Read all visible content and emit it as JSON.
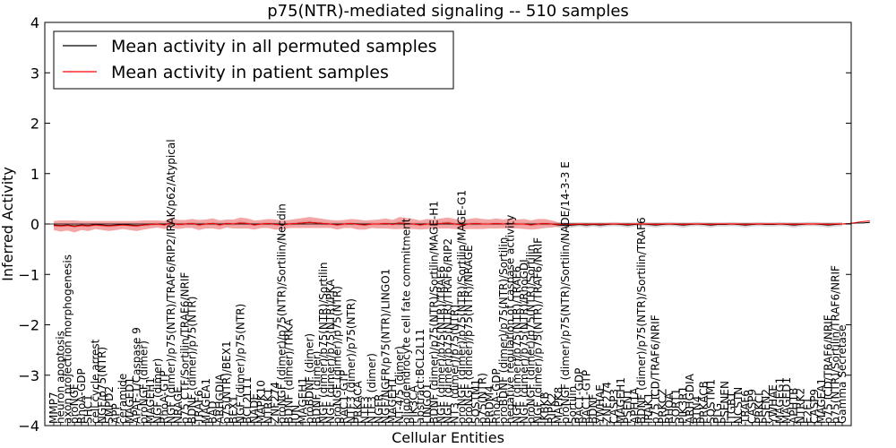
{
  "chart_data": {
    "type": "line",
    "title": "p75(NTR)-mediated signaling -- 510 samples",
    "xlabel": "Cellular Entities",
    "ylabel": "Inferred Activity",
    "ylim": [
      -4,
      4
    ],
    "yticks": [
      "-4",
      "-3",
      "-2",
      "-1",
      "0",
      "1",
      "2",
      "3",
      "4"
    ],
    "grid": false,
    "legend_position": "top-left",
    "colors": {
      "permuted": "#000000",
      "patient": "#ff0000",
      "patient_band": "#f08080",
      "permuted_band": "#c8c8c8"
    },
    "entities": [
      "MMP7",
      "neuron apoptosis",
      "axon projection morphogenesis",
      "proNGF",
      "RhoA-GDP",
      "SHC1",
      "cell cycle arrest",
      "NGF/p75(NTR)",
      "SMPD2",
      "APP",
      "ceramide",
      "MAGED1",
      "APAF-1/Caspase 9",
      "proNGF (dimer)",
      "MAGEH1",
      "NGF (dimer)",
      "RhoA-GTP",
      "NGF (dimer)/p75(NTR)/TRAF6/RIP2/IRAK/p62/Atypical",
      "NRAGE",
      "p75 CTF/Sortilin/TRAF6/NRIF",
      "BDNF (dimer)/p75(NTR)",
      "TRAF6",
      "MAGEA1",
      "BAD",
      "ARHGDIA",
      "p75(NTR)/BEX1",
      "BEX1",
      "NGF (dimer)/p75(NTR)",
      "BCL2L11",
      "NADE",
      "MAPK10",
      "NTRK1",
      "ZNF274",
      "proNGF (dimer)/p75(NTR)/Sortilin/Necdin",
      "BDNF (dimer)/TRKA",
      "JUN",
      "MAGEH1",
      "proBDNF (dimer)",
      "BDNF (dimer)",
      "NGF (dimer)/p75(NTR)/Sortilin",
      "NGF (dimer)/p75(NTR)/PKA",
      "proNGF (dimer)/p75(NTR)",
      "RAC1-GTP",
      "NTF3 (dimer)/p75(NTR)",
      "PRKACA",
      "NTF3",
      "NTF3 (dimer)",
      "NGFR",
      "NGF/NGFR/p75(NTR)/LINGO1",
      "MAGEH1",
      "NT-4/5 (dimer)",
      "oligodendrocyte cell fate commitment",
      "PIK3CA",
      "abstract:BCL2L11",
      "LINGO1",
      "BDNF (dimer)/p75(NTR)/Sortilin/MAGE-H1",
      "NGF (dimer)/p75(NTR)/TRAF6",
      "NGF (dimer)/p75(NTR)/TRAF6/RIP2",
      "NT3 (dimer)/p75(NTR)",
      "proNGF (dimer)/p75(NTR)/Sortilin/MAGE-G1",
      "proNGF (dimer)/p75(NTR)/NRAGE",
      "SQSTM1",
      "p75(NTR)",
      "PRDM4",
      "RhoA-GDP",
      "proBDNF (dimer)/p75(NTR)/Sortilin",
      "negative regulation of caspase activity",
      "NGF (dimer)/p75(NTR)/TRAF6",
      "NGF (dimer)/p75(NTR)/RhoGDI",
      "proNGF (dimer)/p75(NTR)/Sortilin",
      "NGF (dimer)/p75(NTR)/TRAF6/NRIF",
      "IKBKB",
      "RIPK2",
      "MAPK8",
      "proNGF (dimer)/p75(NTR)/Sortilin/NADE/14-3-3 E",
      "Sortilin",
      "RAC1-GDP",
      "RAC1-GTP",
      "BDNF",
      "YWHAE",
      "ZNF274",
      "CASP3",
      "MAGEH1",
      "PSEN1",
      "APH1A",
      "BDNF (dimer)/p75(NTR)/Sortilin/TRAF6",
      "IRAK1",
      "p75 ICD/TRAF6/NRIF",
      "PRKCZ",
      "RHOA",
      "SORT1",
      "PIK3R1",
      "ARHGDIA",
      "RTN4",
      "PRKACB",
      "SQSTM1",
      "PLG",
      "PSENEN",
      "ITGB1",
      "NCSTN",
      "TRAF6",
      "CASP9",
      "PRKCI",
      "PSEN2",
      "YWHAE",
      "MAGEG1",
      "MAGED1",
      "APH1B",
      "NTRK2",
      "E2F1",
      "CASP9",
      "MAGEA1",
      "p75 ICD/TRAF6/NRIF",
      "p75(NTR)/Sortilin/TRAF6/NRIF",
      "Gamma Secretase"
    ],
    "series": [
      {
        "name": "Mean activity in all permuted samples",
        "color": "#000000",
        "values": [
          -0.02,
          -0.03,
          -0.02,
          -0.04,
          -0.02,
          -0.03,
          -0.01,
          -0.02,
          -0.03,
          -0.02,
          -0.01,
          -0.02,
          -0.03,
          -0.02,
          -0.01,
          0.0,
          -0.01,
          0.02,
          -0.01,
          0.0,
          0.01,
          -0.01,
          0.0,
          0.01,
          -0.01,
          0.01,
          0.0,
          0.02,
          0.01,
          -0.01,
          0.0,
          0.01,
          0.0,
          -0.01,
          0.0,
          0.01,
          0.02,
          0.03,
          0.02,
          0.01,
          0.0,
          -0.01,
          0.0,
          0.01,
          0.0,
          -0.01,
          0.0,
          0.0,
          0.01,
          0.0,
          0.02,
          0.01,
          0.0,
          -0.01,
          0.0,
          0.0,
          0.01,
          0.02,
          0.0,
          -0.01,
          0.0,
          0.01,
          0.0,
          0.0,
          0.01,
          0.0,
          0.01,
          0.0,
          0.0,
          -0.01,
          0.0,
          0.01,
          0.0,
          -0.02,
          -0.03,
          -0.02,
          -0.01,
          -0.02,
          -0.01,
          -0.02,
          -0.01,
          0.0,
          -0.01,
          -0.02,
          -0.01,
          0.0,
          -0.01,
          -0.02,
          -0.01,
          0.0,
          -0.01,
          -0.02,
          -0.01,
          0.0,
          -0.01,
          -0.02,
          -0.01,
          -0.01,
          0.0,
          -0.01,
          -0.02,
          -0.01,
          0.0,
          -0.01,
          -0.01,
          0.0,
          -0.01,
          -0.02,
          -0.01,
          0.0,
          0.0,
          -0.01,
          -0.02,
          -0.01,
          0.0,
          0.01,
          0.02,
          0.02,
          0.03
        ]
      },
      {
        "name": "Mean activity in patient samples",
        "color": "#ff0000",
        "values": [
          -0.03,
          -0.04,
          -0.03,
          -0.05,
          -0.03,
          -0.04,
          -0.02,
          -0.03,
          -0.04,
          -0.03,
          -0.02,
          -0.03,
          -0.04,
          -0.02,
          -0.01,
          0.0,
          -0.02,
          0.02,
          -0.01,
          0.0,
          0.01,
          -0.02,
          0.0,
          0.01,
          -0.02,
          0.01,
          0.0,
          0.02,
          0.01,
          -0.02,
          0.0,
          0.01,
          -0.01,
          -0.02,
          0.0,
          0.01,
          0.02,
          0.03,
          0.02,
          0.01,
          0.0,
          -0.02,
          0.0,
          0.01,
          -0.01,
          -0.02,
          0.0,
          0.0,
          0.01,
          -0.01,
          0.02,
          0.01,
          0.0,
          -0.02,
          0.0,
          0.0,
          0.01,
          0.02,
          0.0,
          -0.02,
          0.0,
          0.01,
          0.0,
          0.0,
          0.01,
          0.0,
          0.01,
          0.0,
          0.0,
          -0.02,
          0.0,
          0.01,
          0.0,
          -0.01,
          -0.01,
          -0.01,
          0.0,
          -0.01,
          0.0,
          -0.01,
          0.0,
          0.0,
          0.0,
          -0.01,
          0.0,
          0.0,
          0.0,
          -0.01,
          0.0,
          0.0,
          0.0,
          -0.01,
          0.0,
          0.0,
          0.0,
          -0.01,
          0.0,
          0.0,
          0.0,
          0.0,
          -0.01,
          0.0,
          0.0,
          0.0,
          0.0,
          0.0,
          0.0,
          -0.01,
          0.0,
          0.0,
          0.0,
          0.0,
          -0.01,
          0.0,
          0.0,
          0.01,
          0.03,
          0.05,
          0.06
        ]
      }
    ],
    "patient_band_halfwidth": [
      0.09,
      0.11,
      0.1,
      0.12,
      0.09,
      0.1,
      0.08,
      0.09,
      0.1,
      0.09,
      0.08,
      0.09,
      0.1,
      0.09,
      0.08,
      0.07,
      0.08,
      0.1,
      0.09,
      0.08,
      0.09,
      0.1,
      0.09,
      0.1,
      0.09,
      0.08,
      0.09,
      0.11,
      0.1,
      0.09,
      0.08,
      0.09,
      0.1,
      0.09,
      0.08,
      0.09,
      0.1,
      0.11,
      0.1,
      0.09,
      0.08,
      0.09,
      0.08,
      0.09,
      0.1,
      0.09,
      0.08,
      0.09,
      0.1,
      0.09,
      0.12,
      0.11,
      0.1,
      0.09,
      0.1,
      0.09,
      0.1,
      0.11,
      0.1,
      0.09,
      0.1,
      0.11,
      0.1,
      0.09,
      0.1,
      0.09,
      0.1,
      0.09,
      0.1,
      0.09,
      0.1,
      0.09,
      0.07,
      0.04,
      0.03,
      0.03,
      0.02,
      0.03,
      0.02,
      0.03,
      0.02,
      0.02,
      0.02,
      0.03,
      0.02,
      0.02,
      0.02,
      0.03,
      0.02,
      0.02,
      0.02,
      0.03,
      0.02,
      0.02,
      0.02,
      0.03,
      0.02,
      0.02,
      0.02,
      0.02,
      0.03,
      0.02,
      0.02,
      0.02,
      0.02,
      0.02,
      0.02,
      0.03,
      0.02,
      0.02,
      0.02,
      0.02,
      0.03,
      0.02,
      0.02,
      0.03,
      0.04,
      0.05,
      0.06
    ],
    "permuted_band_halfwidth": [
      0.03,
      0.04,
      0.03,
      0.04,
      0.03,
      0.04,
      0.03,
      0.03,
      0.04,
      0.03,
      0.03,
      0.03,
      0.04,
      0.03,
      0.03,
      0.03,
      0.03,
      0.04,
      0.03,
      0.03,
      0.03,
      0.04,
      0.03,
      0.03,
      0.04,
      0.03,
      0.03,
      0.04,
      0.03,
      0.03,
      0.03,
      0.03,
      0.04,
      0.03,
      0.03,
      0.03,
      0.04,
      0.04,
      0.03,
      0.03,
      0.03,
      0.04,
      0.03,
      0.03,
      0.03,
      0.04,
      0.03,
      0.03,
      0.03,
      0.03,
      0.04,
      0.03,
      0.03,
      0.04,
      0.03,
      0.03,
      0.03,
      0.04,
      0.03,
      0.03,
      0.03,
      0.04,
      0.03,
      0.03,
      0.03,
      0.03,
      0.03,
      0.03,
      0.03,
      0.04,
      0.03,
      0.03,
      0.03,
      0.05,
      0.06,
      0.05,
      0.04,
      0.05,
      0.04,
      0.05,
      0.04,
      0.04,
      0.04,
      0.05,
      0.04,
      0.04,
      0.04,
      0.05,
      0.04,
      0.04,
      0.04,
      0.05,
      0.04,
      0.04,
      0.04,
      0.05,
      0.04,
      0.04,
      0.04,
      0.04,
      0.05,
      0.04,
      0.04,
      0.04,
      0.04,
      0.04,
      0.04,
      0.05,
      0.04,
      0.04,
      0.04,
      0.04,
      0.05,
      0.04,
      0.04,
      0.04,
      0.04,
      0.04,
      0.04
    ]
  }
}
